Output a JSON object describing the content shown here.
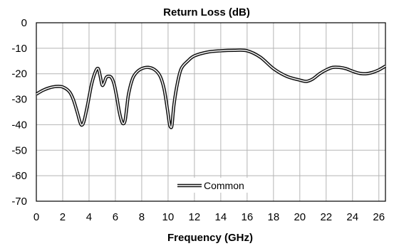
{
  "chart_data": {
    "type": "line",
    "title": "Return Loss (dB)",
    "xlabel": "Frequency (GHz)",
    "ylabel": "",
    "xlim": [
      0,
      26.5
    ],
    "ylim": [
      -70,
      0
    ],
    "xticks": [
      0,
      2,
      4,
      6,
      8,
      10,
      12,
      14,
      16,
      18,
      20,
      22,
      24,
      26
    ],
    "yticks": [
      0,
      -10,
      -20,
      -30,
      -40,
      -50,
      -60,
      -70
    ],
    "grid": true,
    "legend_position": "center",
    "series": [
      {
        "name": "Common",
        "x": [
          0,
          0.5,
          1,
          1.5,
          2,
          2.5,
          2.8,
          3.1,
          3.35,
          3.5,
          3.65,
          3.9,
          4.2,
          4.5,
          4.7,
          4.85,
          5.0,
          5.15,
          5.3,
          5.5,
          5.7,
          5.9,
          6.1,
          6.3,
          6.5,
          6.65,
          6.75,
          6.85,
          7.0,
          7.3,
          7.6,
          8.0,
          8.5,
          9.0,
          9.4,
          9.7,
          9.95,
          10.1,
          10.2,
          10.3,
          10.45,
          10.7,
          11.0,
          11.5,
          12.0,
          13.0,
          14.0,
          15.0,
          16.0,
          17.0,
          18.0,
          19.0,
          20.0,
          20.5,
          21.0,
          21.5,
          22.0,
          22.5,
          23.0,
          23.5,
          24.0,
          24.5,
          25.0,
          25.5,
          26.0,
          26.5
        ],
        "y": [
          -28,
          -26.5,
          -25.5,
          -25,
          -25.2,
          -27,
          -30,
          -35,
          -39.5,
          -40,
          -38,
          -32,
          -24,
          -19,
          -18,
          -21,
          -24.5,
          -23.5,
          -21.5,
          -21,
          -21.5,
          -24,
          -29,
          -35,
          -39,
          -39.5,
          -38,
          -34,
          -28,
          -22,
          -19.5,
          -18,
          -17.5,
          -18.5,
          -21,
          -26,
          -34,
          -39.5,
          -41,
          -40,
          -32,
          -24,
          -18,
          -15,
          -13,
          -11.5,
          -11,
          -10.8,
          -11,
          -13.5,
          -18,
          -21,
          -22.5,
          -23,
          -22,
          -20,
          -18.5,
          -17.5,
          -17.5,
          -18,
          -19,
          -19.8,
          -20,
          -19.5,
          -18.5,
          -17
        ]
      }
    ]
  }
}
